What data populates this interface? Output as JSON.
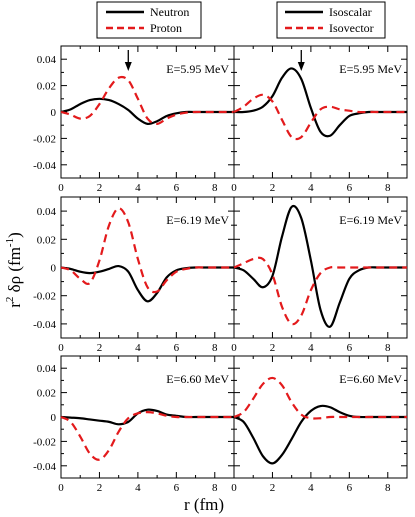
{
  "legends": [
    {
      "entries": [
        {
          "label": "Neutron",
          "color": "#000000",
          "dash": "solid"
        },
        {
          "label": "Proton",
          "color": "#e31a1c",
          "dash": "dashed"
        }
      ]
    },
    {
      "entries": [
        {
          "label": "Isoscalar",
          "color": "#000000",
          "dash": "solid"
        },
        {
          "label": "Isovector",
          "color": "#e31a1c",
          "dash": "dashed"
        }
      ]
    }
  ],
  "ylabel": {
    "base": "r",
    "sup": "2",
    "mid": " δρ  (fm",
    "exp": "-1",
    "end": ")"
  },
  "xlabel": "r (fm)",
  "chart_data": [
    {
      "type": "line",
      "row": 0,
      "col": 0,
      "annotation": "E=5.95 MeV",
      "arrow_x": 3.5,
      "xlim": [
        0,
        9
      ],
      "ylim": [
        -0.05,
        0.05
      ],
      "xticks": [
        0,
        2,
        4,
        6,
        8
      ],
      "yticks": [
        -0.04,
        -0.02,
        0,
        0.02,
        0.04
      ],
      "xticklabels": [
        "0",
        "2",
        "4",
        "6",
        "8"
      ],
      "yticklabels": [
        "-0.04",
        "-0.02",
        "0",
        "0.02",
        "0.04"
      ],
      "series": [
        {
          "name": "Neutron",
          "color": "#000000",
          "dash": "solid",
          "x": [
            0,
            0.5,
            1,
            1.5,
            2,
            2.5,
            3,
            3.5,
            4,
            4.5,
            5,
            5.5,
            6,
            6.5,
            7,
            7.5,
            8,
            8.5,
            9
          ],
          "y": [
            0,
            0.002,
            0.006,
            0.009,
            0.01,
            0.009,
            0.006,
            0.0015,
            -0.005,
            -0.009,
            -0.007,
            -0.003,
            -0.001,
            0,
            0,
            0,
            0,
            0,
            0
          ]
        },
        {
          "name": "Proton",
          "color": "#e31a1c",
          "dash": "dashed",
          "x": [
            0,
            0.5,
            1,
            1.5,
            2,
            2.5,
            3,
            3.5,
            4,
            4.5,
            5,
            5.5,
            6,
            6.5,
            7,
            7.5,
            8,
            8.5,
            9
          ],
          "y": [
            0,
            -0.002,
            -0.005,
            -0.003,
            0.006,
            0.018,
            0.026,
            0.024,
            0.01,
            -0.005,
            -0.009,
            -0.005,
            -0.002,
            -0.0005,
            0,
            0,
            0,
            0,
            0
          ]
        }
      ]
    },
    {
      "type": "line",
      "row": 0,
      "col": 1,
      "annotation": "E=5.95 MeV",
      "arrow_x": 3.5,
      "xlim": [
        0,
        9
      ],
      "ylim": [
        -0.05,
        0.05
      ],
      "xticks": [
        0,
        2,
        4,
        6,
        8
      ],
      "yticks": [
        -0.04,
        -0.02,
        0,
        0.02,
        0.04
      ],
      "xticklabels": [
        "0",
        "2",
        "4",
        "6",
        "8"
      ],
      "yticklabels": [
        "-0.04",
        "-0.02",
        "0",
        "0.02",
        "0.04"
      ],
      "series": [
        {
          "name": "Isoscalar",
          "color": "#000000",
          "dash": "solid",
          "x": [
            0,
            0.5,
            1,
            1.5,
            2,
            2.5,
            3,
            3.5,
            4,
            4.5,
            5,
            5.5,
            6,
            6.5,
            7,
            7.5,
            8,
            8.5,
            9
          ],
          "y": [
            0,
            0,
            0.001,
            0.004,
            0.012,
            0.026,
            0.033,
            0.025,
            0.003,
            -0.015,
            -0.018,
            -0.01,
            -0.003,
            -0.001,
            0,
            0,
            0,
            0,
            0
          ]
        },
        {
          "name": "Isovector",
          "color": "#e31a1c",
          "dash": "dashed",
          "x": [
            0,
            0.5,
            1,
            1.5,
            2,
            2.5,
            3,
            3.5,
            4,
            4.5,
            5,
            5.5,
            6,
            6.5,
            7,
            7.5,
            8,
            8.5,
            9
          ],
          "y": [
            0,
            0.004,
            0.01,
            0.013,
            0.008,
            -0.006,
            -0.019,
            -0.019,
            -0.008,
            0.002,
            0.004,
            0.002,
            0.001,
            0,
            0,
            0,
            0,
            0,
            0
          ]
        }
      ]
    },
    {
      "type": "line",
      "row": 1,
      "col": 0,
      "annotation": "E=6.19 MeV",
      "xlim": [
        0,
        9
      ],
      "ylim": [
        -0.05,
        0.05
      ],
      "xticks": [
        0,
        2,
        4,
        6,
        8
      ],
      "yticks": [
        -0.04,
        -0.02,
        0,
        0.02,
        0.04
      ],
      "xticklabels": [
        "0",
        "2",
        "4",
        "6",
        "8"
      ],
      "yticklabels": [
        "-0.04",
        "-0.02",
        "0",
        "0.02",
        "0.04"
      ],
      "series": [
        {
          "name": "Neutron",
          "color": "#000000",
          "dash": "solid",
          "x": [
            0,
            0.5,
            1,
            1.5,
            2,
            2.5,
            3,
            3.5,
            4,
            4.5,
            5,
            5.5,
            6,
            6.5,
            7,
            7.5,
            8,
            8.5,
            9
          ],
          "y": [
            0,
            -0.001,
            -0.003,
            -0.004,
            -0.003,
            -0.001,
            0.001,
            -0.003,
            -0.016,
            -0.024,
            -0.018,
            -0.007,
            -0.002,
            -0.0005,
            0,
            0,
            0,
            0,
            0
          ]
        },
        {
          "name": "Proton",
          "color": "#e31a1c",
          "dash": "dashed",
          "x": [
            0,
            0.5,
            1,
            1.5,
            2,
            2.5,
            3,
            3.5,
            4,
            4.5,
            5,
            5.5,
            6,
            6.5,
            7,
            7.5,
            8,
            8.5,
            9
          ],
          "y": [
            0,
            -0.002,
            -0.008,
            -0.011,
            0.005,
            0.03,
            0.042,
            0.032,
            0.006,
            -0.014,
            -0.017,
            -0.009,
            -0.003,
            -0.001,
            0,
            0,
            0,
            0,
            0
          ]
        }
      ]
    },
    {
      "type": "line",
      "row": 1,
      "col": 1,
      "annotation": "E=6.19 MeV",
      "xlim": [
        0,
        9
      ],
      "ylim": [
        -0.05,
        0.05
      ],
      "xticks": [
        0,
        2,
        4,
        6,
        8
      ],
      "yticks": [
        -0.04,
        -0.02,
        0,
        0.02,
        0.04
      ],
      "xticklabels": [
        "0",
        "2",
        "4",
        "6",
        "8"
      ],
      "yticklabels": [
        "-0.04",
        "-0.02",
        "0",
        "0.02",
        "0.04"
      ],
      "series": [
        {
          "name": "Isoscalar",
          "color": "#000000",
          "dash": "solid",
          "x": [
            0,
            0.5,
            1,
            1.5,
            2,
            2.5,
            3,
            3.5,
            4,
            4.5,
            5,
            5.5,
            6,
            6.5,
            7,
            7.5,
            8,
            8.5,
            9
          ],
          "y": [
            0,
            -0.002,
            -0.008,
            -0.014,
            -0.006,
            0.022,
            0.043,
            0.035,
            0.005,
            -0.03,
            -0.042,
            -0.025,
            -0.008,
            -0.002,
            0,
            0,
            0,
            0,
            0
          ]
        },
        {
          "name": "Isovector",
          "color": "#e31a1c",
          "dash": "dashed",
          "x": [
            0,
            0.5,
            1,
            1.5,
            2,
            2.5,
            3,
            3.5,
            4,
            4.5,
            5,
            5.5,
            6,
            6.5,
            7,
            7.5,
            8,
            8.5,
            9
          ],
          "y": [
            0,
            0.003,
            0.006,
            0.006,
            -0.005,
            -0.028,
            -0.04,
            -0.034,
            -0.016,
            -0.004,
            0,
            0,
            0,
            0,
            0,
            0,
            0,
            0,
            0
          ]
        }
      ]
    },
    {
      "type": "line",
      "row": 2,
      "col": 0,
      "annotation": "E=6.60 MeV",
      "xlim": [
        0,
        9
      ],
      "ylim": [
        -0.05,
        0.05
      ],
      "xticks": [
        0,
        2,
        4,
        6,
        8
      ],
      "yticks": [
        -0.04,
        -0.02,
        0,
        0.02,
        0.04
      ],
      "xticklabels": [
        "0",
        "2",
        "4",
        "6",
        "8"
      ],
      "yticklabels": [
        "-0.04",
        "-0.02",
        "0",
        "0.02",
        "0.04"
      ],
      "series": [
        {
          "name": "Neutron",
          "color": "#000000",
          "dash": "solid",
          "x": [
            0,
            0.5,
            1,
            1.5,
            2,
            2.5,
            3,
            3.5,
            4,
            4.5,
            5,
            5.5,
            6,
            6.5,
            7,
            7.5,
            8,
            8.5,
            9
          ],
          "y": [
            0,
            -0.0005,
            -0.001,
            -0.002,
            -0.003,
            -0.004,
            -0.006,
            -0.004,
            0.003,
            0.006,
            0.005,
            0.002,
            0.001,
            0,
            0,
            0,
            0,
            0,
            0
          ]
        },
        {
          "name": "Proton",
          "color": "#e31a1c",
          "dash": "dashed",
          "x": [
            0,
            0.5,
            1,
            1.5,
            2,
            2.5,
            3,
            3.5,
            4,
            4.5,
            5,
            5.5,
            6,
            6.5,
            7,
            7.5,
            8,
            8.5,
            9
          ],
          "y": [
            0,
            -0.004,
            -0.016,
            -0.03,
            -0.035,
            -0.027,
            -0.012,
            -0.001,
            0.003,
            0.004,
            0.003,
            0.001,
            0,
            0,
            0,
            0,
            0,
            0,
            0
          ]
        }
      ]
    },
    {
      "type": "line",
      "row": 2,
      "col": 1,
      "annotation": "E=6.60 MeV",
      "xlim": [
        0,
        9
      ],
      "ylim": [
        -0.05,
        0.05
      ],
      "xticks": [
        0,
        2,
        4,
        6,
        8
      ],
      "yticks": [
        -0.04,
        -0.02,
        0,
        0.02,
        0.04
      ],
      "xticklabels": [
        "0",
        "2",
        "4",
        "6",
        "8"
      ],
      "yticklabels": [
        "-0.04",
        "-0.02",
        "0",
        "0.02",
        "0.04"
      ],
      "series": [
        {
          "name": "Isoscalar",
          "color": "#000000",
          "dash": "solid",
          "x": [
            0,
            0.5,
            1,
            1.5,
            2,
            2.5,
            3,
            3.5,
            4,
            4.5,
            5,
            5.5,
            6,
            6.5,
            7,
            7.5,
            8,
            8.5,
            9
          ],
          "y": [
            0,
            -0.004,
            -0.017,
            -0.032,
            -0.038,
            -0.031,
            -0.018,
            -0.004,
            0.005,
            0.009,
            0.008,
            0.004,
            0.001,
            0,
            0,
            0,
            0,
            0,
            0
          ]
        },
        {
          "name": "Isovector",
          "color": "#e31a1c",
          "dash": "dashed",
          "x": [
            0,
            0.5,
            1,
            1.5,
            2,
            2.5,
            3,
            3.5,
            4,
            4.5,
            5,
            5.5,
            6,
            6.5,
            7,
            7.5,
            8,
            8.5,
            9
          ],
          "y": [
            0,
            0.004,
            0.015,
            0.027,
            0.032,
            0.026,
            0.012,
            0.002,
            -0.001,
            -0.001,
            0,
            0,
            0,
            0,
            0,
            0,
            0,
            0,
            0
          ]
        }
      ]
    }
  ]
}
